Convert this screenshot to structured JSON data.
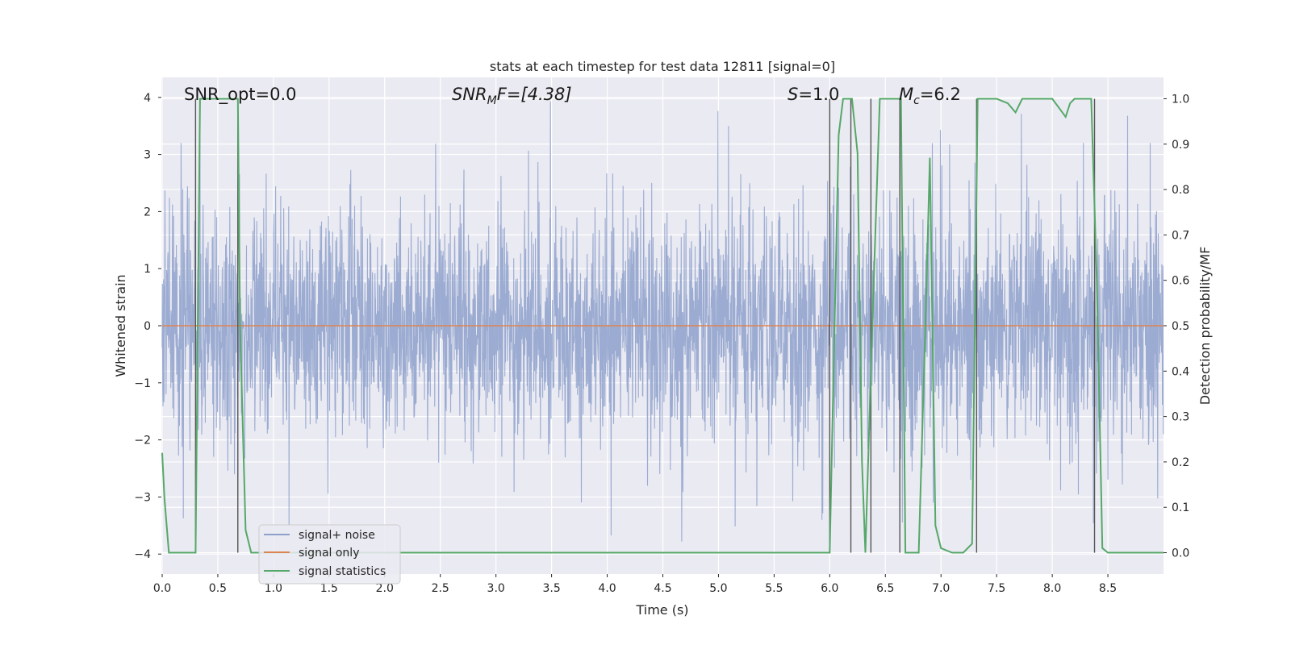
{
  "chart_data": {
    "type": "line",
    "title": "stats at each timestep for test data 12811 [signal=0]",
    "xlabel": "Time (s)",
    "ylabel": "Whitened strain",
    "y2label": "Detection probability/MF",
    "xlim": [
      0,
      9.0
    ],
    "ylim": [
      -4.35,
      4.35
    ],
    "y2lim": [
      -0.047,
      1.047
    ],
    "xticks": [
      "0.0",
      "0.5",
      "1.0",
      "1.5",
      "2.0",
      "2.5",
      "3.0",
      "3.5",
      "4.0",
      "4.5",
      "5.0",
      "5.5",
      "6.0",
      "6.5",
      "7.0",
      "7.5",
      "8.0",
      "8.5"
    ],
    "yticks": [
      "4",
      "3",
      "2",
      "1",
      "0",
      "−1",
      "−2",
      "−3",
      "−4"
    ],
    "y2ticks": [
      "1.0",
      "0.9",
      "0.8",
      "0.7",
      "0.6",
      "0.5",
      "0.4",
      "0.3",
      "0.2",
      "0.1",
      "0.0"
    ],
    "annotations": {
      "snr_opt": "SNR_opt=0.0",
      "snr_mf_base": "SNR",
      "snr_mf_sub": "M",
      "snr_mf_rest": "F=[4.38]",
      "s_label": "S",
      "s_value": "=1.0",
      "mc_base": "M",
      "mc_sub": "c",
      "mc_value": "=6.2"
    },
    "legend": {
      "position": "lower-left",
      "entries": [
        "signal+ noise",
        "signal only",
        "signal statistics"
      ]
    },
    "colors": {
      "noise": "#8da0cb",
      "signal": "#dd8452",
      "stats": "#55a868",
      "vlines": "#555555",
      "background": "#eaeaf2",
      "grid": "#ffffff"
    },
    "series": [
      {
        "name": "signal+ noise",
        "description_values": "whitened noise with standard deviation about 1, range -4 to 4",
        "noise_std": 1.0,
        "sample_rate": 400,
        "peaks": [
          {
            "t": 3.49,
            "v": 3.93
          },
          {
            "t": 5.09,
            "v": 3.5
          },
          {
            "t": 0.34,
            "v": 3.3
          },
          {
            "t": 4.67,
            "v": -3.78
          },
          {
            "t": 1.14,
            "v": -3.5
          },
          {
            "t": 8.28,
            "v": 3.2
          },
          {
            "t": 8.88,
            "v": 3.2
          },
          {
            "t": 0.17,
            "v": 3.2
          },
          {
            "t": 5.93,
            "v": -3.4
          },
          {
            "t": 6.93,
            "v": -3.1
          }
        ]
      },
      {
        "name": "signal only",
        "x": [
          0,
          9.0
        ],
        "y": [
          0,
          0
        ]
      },
      {
        "name": "signal statistics",
        "axis": "right",
        "x": [
          0.0,
          0.02,
          0.06,
          0.1,
          0.2,
          0.3,
          0.34,
          0.37,
          0.4,
          0.5,
          0.6,
          0.68,
          0.7,
          0.75,
          0.8,
          0.85,
          1.0,
          2.0,
          3.0,
          4.0,
          5.0,
          5.5,
          6.0,
          6.08,
          6.12,
          6.16,
          6.2,
          6.25,
          6.29,
          6.32,
          6.38,
          6.45,
          6.5,
          6.6,
          6.64,
          6.68,
          6.72,
          6.8,
          6.86,
          6.9,
          6.95,
          7.0,
          7.1,
          7.2,
          7.28,
          7.33,
          7.38,
          7.42,
          7.5,
          7.6,
          7.67,
          7.73,
          7.8,
          7.9,
          8.0,
          8.06,
          8.12,
          8.16,
          8.2,
          8.25,
          8.35,
          8.4,
          8.45,
          8.5,
          8.6,
          8.7,
          8.8,
          8.9,
          9.0
        ],
        "y": [
          0.22,
          0.12,
          0.0,
          0.0,
          0.0,
          0.0,
          1.0,
          1.0,
          1.0,
          1.0,
          1.0,
          1.0,
          0.5,
          0.05,
          0.0,
          0.0,
          0.0,
          0.0,
          0.0,
          0.0,
          0.0,
          0.0,
          0.0,
          0.92,
          1.0,
          1.0,
          1.0,
          0.88,
          0.2,
          0.0,
          0.48,
          1.0,
          1.0,
          1.0,
          1.0,
          0.0,
          0.0,
          0.0,
          0.5,
          0.87,
          0.06,
          0.01,
          0.0,
          0.0,
          0.02,
          1.0,
          1.0,
          1.0,
          1.0,
          0.99,
          0.97,
          1.0,
          1.0,
          1.0,
          1.0,
          0.98,
          0.96,
          0.99,
          1.0,
          1.0,
          1.0,
          0.6,
          0.01,
          0.0,
          0.0,
          0.0,
          0.0,
          0.0,
          0.0
        ]
      }
    ],
    "vertical_lines_t": [
      0.3,
      0.68,
      6.0,
      6.19,
      6.37,
      6.63,
      7.32,
      8.38
    ]
  }
}
